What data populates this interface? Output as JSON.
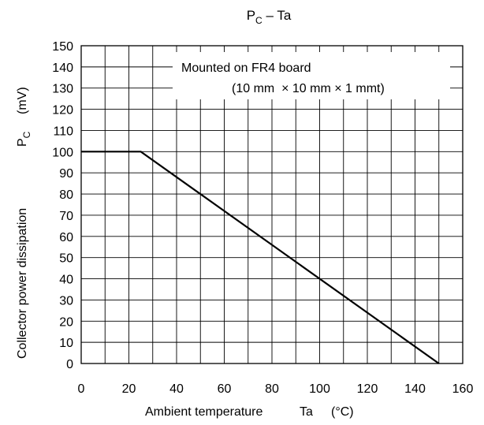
{
  "chart_data": {
    "type": "line",
    "title": {
      "main": "P",
      "sub": "C",
      "rest": " – Ta"
    },
    "xlabel": {
      "text": "Ambient temperature",
      "symbol": "Ta",
      "unit": "(°C)"
    },
    "ylabel": {
      "text": "Collector power dissipation",
      "symbol": "P",
      "symbol_sub": "C",
      "unit": "(mV)"
    },
    "xlim": [
      0,
      160
    ],
    "ylim": [
      0,
      150
    ],
    "x_ticks": [
      0,
      20,
      40,
      60,
      80,
      100,
      120,
      140,
      160
    ],
    "y_ticks": [
      0,
      10,
      20,
      30,
      40,
      50,
      60,
      70,
      80,
      90,
      100,
      110,
      120,
      130,
      140,
      150
    ],
    "x_grid_step": 10,
    "y_grid_step": 10,
    "grid": true,
    "series": [
      {
        "x": [
          0,
          25,
          150
        ],
        "y": [
          100,
          100,
          0
        ]
      }
    ],
    "annotation": {
      "line1": "Mounted on FR4 board",
      "line2": "(10 mm  × 10 mm × 1 mmt)"
    }
  }
}
